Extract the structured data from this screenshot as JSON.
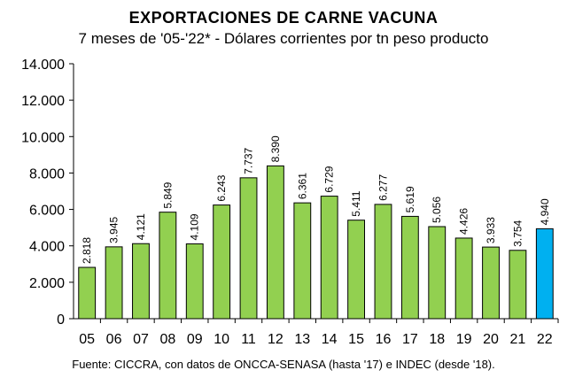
{
  "chart_data": {
    "type": "bar",
    "title": "EXPORTACIONES DE CARNE VACUNA",
    "subtitle": "7 meses de '05-'22* - Dólares corrientes por tn peso producto",
    "source": "Fuente: CICCRA, con datos de ONCCA-SENASA (hasta '17) e INDEC (desde '18).",
    "categories": [
      "05",
      "06",
      "07",
      "08",
      "09",
      "10",
      "11",
      "12",
      "13",
      "14",
      "15",
      "16",
      "17",
      "18",
      "19",
      "20",
      "21",
      "22"
    ],
    "values": [
      2818,
      3945,
      4121,
      5849,
      4109,
      6243,
      7737,
      8390,
      6361,
      6729,
      5411,
      6277,
      5619,
      5056,
      4426,
      3933,
      3754,
      4940
    ],
    "value_labels": [
      "2.818",
      "3.945",
      "4.121",
      "5.849",
      "4.109",
      "6.243",
      "7.737",
      "8.390",
      "6.361",
      "6.729",
      "5.411",
      "6.277",
      "5.619",
      "5.056",
      "4.426",
      "3.933",
      "3.754",
      "4.940"
    ],
    "ylim": [
      0,
      14000
    ],
    "yticks": [
      0,
      2000,
      4000,
      6000,
      8000,
      10000,
      12000,
      14000
    ],
    "ytick_labels": [
      "0",
      "2.000",
      "4.000",
      "6.000",
      "8.000",
      "10.000",
      "12.000",
      "14.000"
    ],
    "grid": false,
    "legend": "none",
    "colors": {
      "bar": "#92d050",
      "highlight_bar": "#00b0f0",
      "bar_edge": "#000000",
      "axis": "#000000"
    },
    "highlight_index": 17
  }
}
